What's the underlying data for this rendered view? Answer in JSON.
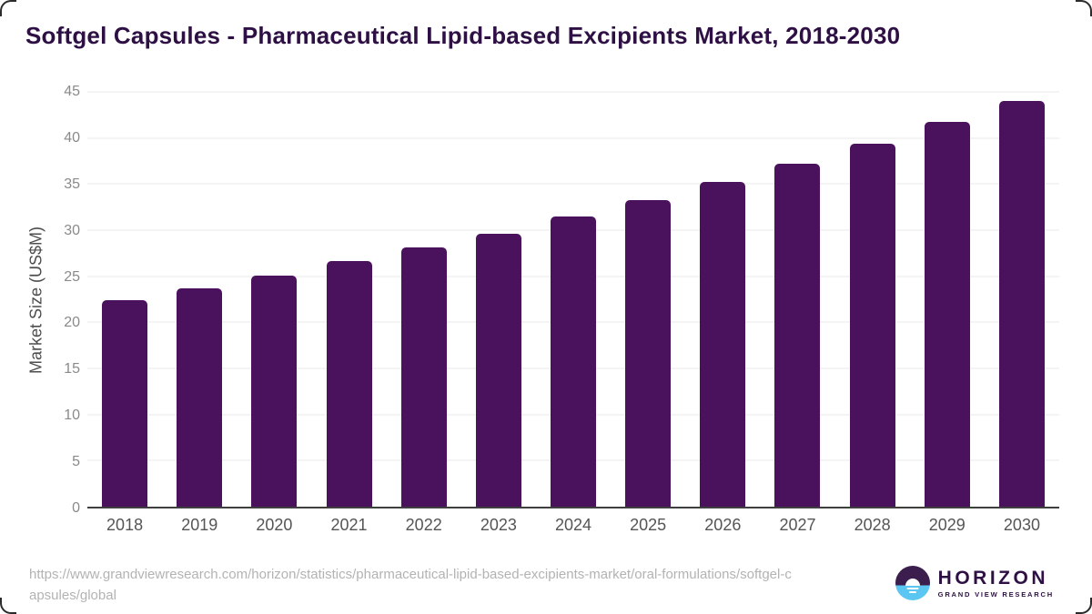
{
  "title": "Softgel Capsules - Pharmaceutical Lipid-based Excipients Market, 2018-2030",
  "chart_data": {
    "type": "bar",
    "title": "Softgel Capsules - Pharmaceutical Lipid-based Excipients Market, 2018-2030",
    "categories": [
      "2018",
      "2019",
      "2020",
      "2021",
      "2022",
      "2023",
      "2024",
      "2025",
      "2026",
      "2027",
      "2028",
      "2029",
      "2030"
    ],
    "values": [
      22.4,
      23.7,
      25.1,
      26.6,
      28.1,
      29.6,
      31.5,
      33.3,
      35.2,
      37.2,
      39.4,
      41.7,
      44.0
    ],
    "xlabel": "",
    "ylabel": "Market Size (US$M)",
    "ylim": [
      0,
      45
    ],
    "ytick_step": 5,
    "grid": "horizontal",
    "legend": "none",
    "bar_color": "#4a115c"
  },
  "colors": {
    "bar": "#4a115c",
    "title_text": "#2e1044",
    "y_axis_title": "#4d4d4d",
    "y_tick_text": "#8a8a8a",
    "x_tick_text": "#555555",
    "gridline": "#e8e8e8",
    "axis_baseline": "#3f3f3f",
    "source_text": "#b3b3b3",
    "logo_purple": "#3b1d4e",
    "logo_blue": "#5bc6f1"
  },
  "footer": {
    "source_url": "https://www.grandviewresearch.com/horizon/statistics/pharmaceutical-lipid-based-excipients-market/oral-formulations/softgel-capsules/global",
    "source_url_lines": [
      "https://www.grandviewresearch.com/horizon/statistics/pharmaceutical-lipid-based-excipients-market/oral-formulations/softgel-c",
      "apsules/global"
    ],
    "logo": {
      "brand": "HORIZON",
      "sub_brand": "GRAND VIEW RESEARCH"
    }
  }
}
